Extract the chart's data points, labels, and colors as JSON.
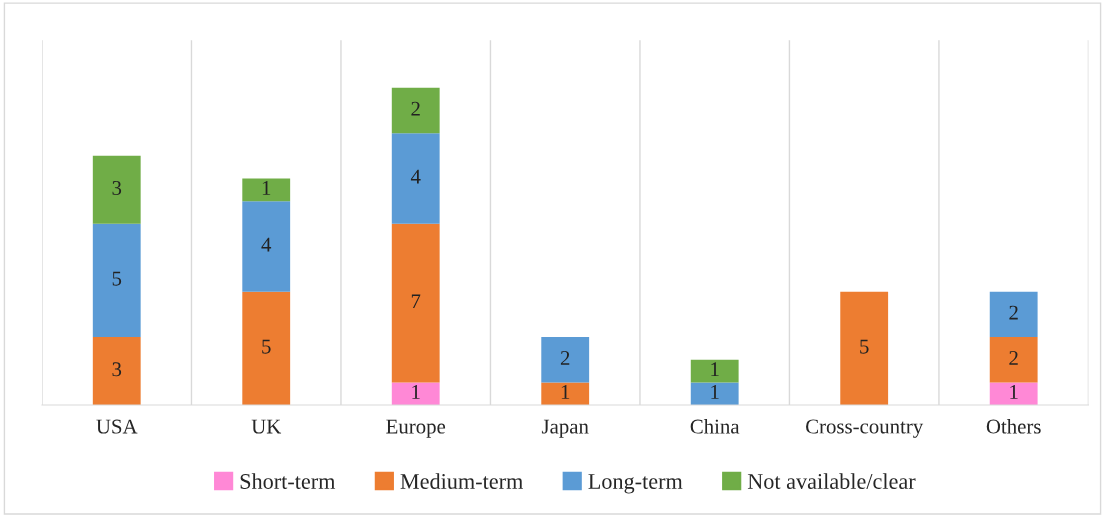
{
  "chart_data": {
    "type": "bar",
    "stacked": true,
    "data_labels": true,
    "grid": "x",
    "legend": "bottom",
    "categories": [
      "USA",
      "UK",
      "Europe",
      "Japan",
      "China",
      "Cross-country",
      "Others"
    ],
    "series": [
      {
        "name": "Short-term",
        "color": "#ff88d6",
        "values": [
          null,
          null,
          1,
          null,
          null,
          null,
          1
        ]
      },
      {
        "name": "Medium-term",
        "color": "#ed7d31",
        "values": [
          3,
          5,
          7,
          1,
          null,
          5,
          2
        ]
      },
      {
        "name": "Long-term",
        "color": "#5b9bd5",
        "values": [
          5,
          4,
          4,
          2,
          1,
          null,
          2
        ]
      },
      {
        "name": "Not available/clear",
        "color": "#70ad47",
        "values": [
          3,
          1,
          2,
          null,
          1,
          null,
          null
        ]
      }
    ]
  }
}
